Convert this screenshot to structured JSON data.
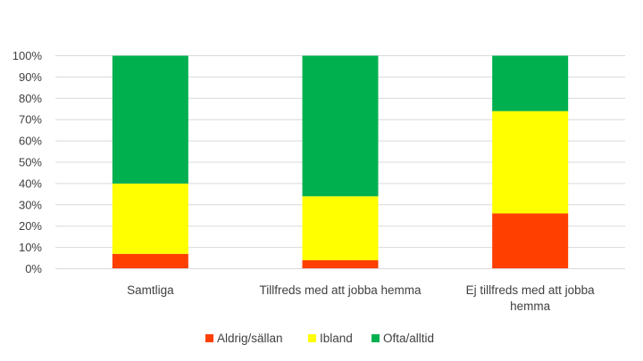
{
  "chart_data": {
    "type": "bar",
    "stacked": true,
    "percent_stacked": true,
    "categories": [
      [
        "Samtliga"
      ],
      [
        "Tillfreds med att jobba hemma"
      ],
      [
        "Ej tillfreds med att jobba",
        "hemma"
      ]
    ],
    "series": [
      {
        "name": "Aldrig/sällan",
        "color": "#FF3F00",
        "values": [
          7,
          4,
          26
        ]
      },
      {
        "name": "Ibland",
        "color": "#FFFF00",
        "values": [
          33,
          30,
          48
        ]
      },
      {
        "name": "Ofta/alltid",
        "color": "#00B04F",
        "values": [
          60,
          66,
          26
        ]
      }
    ],
    "y_ticks": [
      "0%",
      "10%",
      "20%",
      "30%",
      "40%",
      "50%",
      "60%",
      "70%",
      "80%",
      "90%",
      "100%"
    ],
    "ylim": [
      0,
      100
    ],
    "grid": true,
    "legend_position": "bottom"
  }
}
